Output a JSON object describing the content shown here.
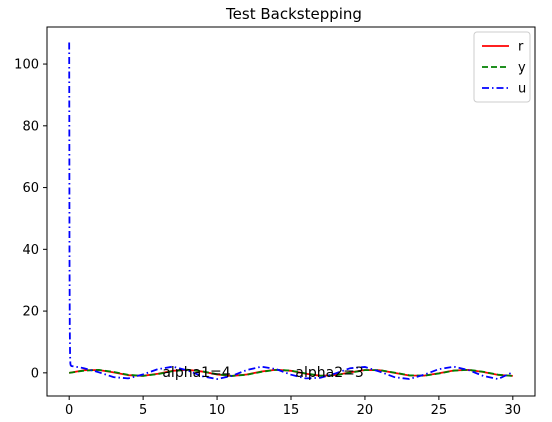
{
  "chart_data": {
    "type": "line",
    "title": "Test Backstepping",
    "xlabel": "",
    "ylabel": "",
    "xlim": [
      -1.5,
      31.5
    ],
    "ylim": [
      -7.5,
      112
    ],
    "xticks": [
      0,
      5,
      10,
      15,
      20,
      25,
      30
    ],
    "yticks": [
      0,
      20,
      40,
      60,
      80,
      100
    ],
    "grid": false,
    "legend_position": "top-right",
    "annotations": [
      {
        "text": "alpha1=4",
        "x": 6.3,
        "y": 0
      },
      {
        "text": "alpha2=3",
        "x": 15.3,
        "y": 0
      }
    ],
    "series": [
      {
        "name": "r",
        "color": "#ff0000",
        "style": "solid",
        "x": [
          0,
          1,
          2,
          3,
          4,
          5,
          6,
          7,
          8,
          9,
          10,
          11,
          12,
          13,
          14,
          15,
          16,
          17,
          18,
          19,
          20,
          21,
          22,
          23,
          24,
          25,
          26,
          27,
          28,
          29,
          30
        ],
        "y": [
          0,
          0.84,
          0.91,
          0.14,
          -0.76,
          -0.96,
          -0.28,
          0.66,
          0.99,
          0.41,
          -0.54,
          -1.0,
          -0.54,
          0.42,
          0.99,
          0.65,
          -0.29,
          -0.96,
          -0.75,
          0.15,
          0.91,
          0.84,
          -0.01,
          -0.85,
          -0.91,
          -0.13,
          0.76,
          0.96,
          0.27,
          -0.66,
          -0.99
        ]
      },
      {
        "name": "y",
        "color": "#008000",
        "style": "dashed",
        "x": [
          0,
          1,
          2,
          3,
          4,
          5,
          6,
          7,
          8,
          9,
          10,
          11,
          12,
          13,
          14,
          15,
          16,
          17,
          18,
          19,
          20,
          21,
          22,
          23,
          24,
          25,
          26,
          27,
          28,
          29,
          30
        ],
        "y": [
          0,
          0.7,
          0.95,
          0.3,
          -0.65,
          -0.99,
          -0.4,
          0.55,
          1.0,
          0.5,
          -0.45,
          -1.0,
          -0.62,
          0.33,
          0.97,
          0.72,
          -0.2,
          -0.93,
          -0.8,
          0.05,
          0.88,
          0.88,
          0.08,
          -0.8,
          -0.94,
          -0.22,
          0.7,
          0.98,
          0.36,
          -0.6,
          -1.0
        ]
      },
      {
        "name": "u",
        "color": "#0000ff",
        "style": "dashdot",
        "x": [
          0,
          0.01,
          0.02,
          0.04,
          0.06,
          0.08,
          0.1,
          0.15,
          1,
          2,
          3,
          4,
          5,
          6,
          7,
          8,
          9,
          10,
          11,
          12,
          13,
          14,
          15,
          16,
          17,
          18,
          19,
          20,
          21,
          22,
          23,
          24,
          25,
          26,
          27,
          28,
          29,
          30
        ],
        "y": [
          107,
          80,
          40,
          15,
          6,
          3,
          2.5,
          2.2,
          1.5,
          0.2,
          -1.4,
          -1.8,
          -0.5,
          1.2,
          2.0,
          0.8,
          -1.1,
          -2.0,
          -1.0,
          0.9,
          2.0,
          1.2,
          -0.6,
          -1.8,
          -1.6,
          -0.2,
          1.5,
          1.9,
          0.4,
          -1.4,
          -2.0,
          -0.6,
          1.2,
          2.0,
          0.9,
          -1.0,
          -2.0,
          0.2
        ]
      }
    ]
  }
}
